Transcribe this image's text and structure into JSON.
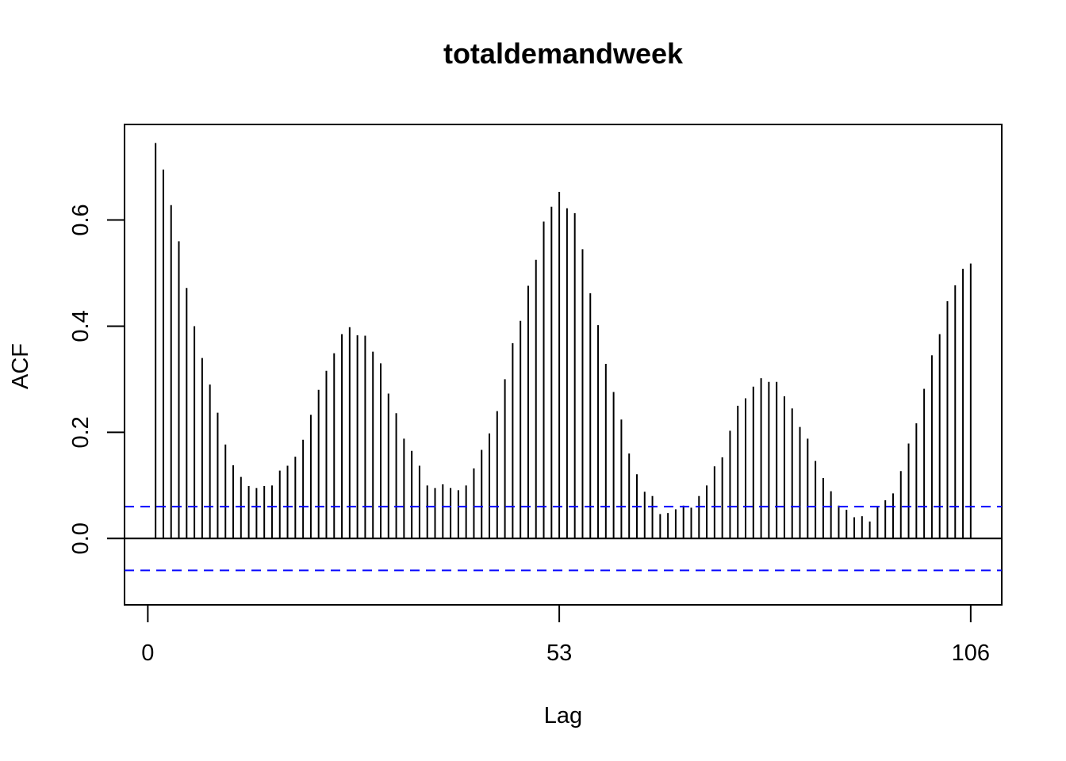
{
  "chart_data": {
    "type": "bar",
    "title": "totaldemandweek",
    "xlabel": "Lag",
    "ylabel": "ACF",
    "xlim": [
      -3,
      110
    ],
    "ylim": [
      -0.125,
      0.78
    ],
    "x_ticks": [
      0,
      53,
      106
    ],
    "x_tick_labels": [
      "0",
      "53",
      "106"
    ],
    "y_ticks": [
      0.0,
      0.2,
      0.4,
      0.6
    ],
    "y_tick_labels": [
      "0.0",
      "0.2",
      "0.4",
      "0.6"
    ],
    "grid": false,
    "legend": null,
    "confidence_band": 0.06,
    "colors": {
      "bars": "#000000",
      "confidence": "#0000ff",
      "zero_line": "#000000"
    },
    "lags": [
      1,
      2,
      3,
      4,
      5,
      6,
      7,
      8,
      9,
      10,
      11,
      12,
      13,
      14,
      15,
      16,
      17,
      18,
      19,
      20,
      21,
      22,
      23,
      24,
      25,
      26,
      27,
      28,
      29,
      30,
      31,
      32,
      33,
      34,
      35,
      36,
      37,
      38,
      39,
      40,
      41,
      42,
      43,
      44,
      45,
      46,
      47,
      48,
      49,
      50,
      51,
      52,
      53,
      54,
      55,
      56,
      57,
      58,
      59,
      60,
      61,
      62,
      63,
      64,
      65,
      66,
      67,
      68,
      69,
      70,
      71,
      72,
      73,
      74,
      75,
      76,
      77,
      78,
      79,
      80,
      81,
      82,
      83,
      84,
      85,
      86,
      87,
      88,
      89,
      90,
      91,
      92,
      93,
      94,
      95,
      96,
      97,
      98,
      99,
      100,
      101,
      102,
      103,
      104,
      105,
      106
    ],
    "acf": [
      0.745,
      0.695,
      0.628,
      0.56,
      0.472,
      0.4,
      0.34,
      0.29,
      0.237,
      0.177,
      0.138,
      0.116,
      0.099,
      0.095,
      0.099,
      0.1,
      0.128,
      0.137,
      0.154,
      0.186,
      0.233,
      0.28,
      0.316,
      0.349,
      0.385,
      0.398,
      0.383,
      0.382,
      0.352,
      0.33,
      0.273,
      0.236,
      0.188,
      0.165,
      0.137,
      0.1,
      0.095,
      0.102,
      0.095,
      0.091,
      0.1,
      0.132,
      0.167,
      0.198,
      0.24,
      0.3,
      0.368,
      0.41,
      0.476,
      0.525,
      0.597,
      0.625,
      0.653,
      0.622,
      0.613,
      0.545,
      0.462,
      0.402,
      0.329,
      0.276,
      0.224,
      0.16,
      0.121,
      0.088,
      0.08,
      0.046,
      0.048,
      0.055,
      0.062,
      0.058,
      0.08,
      0.1,
      0.136,
      0.153,
      0.203,
      0.25,
      0.264,
      0.286,
      0.302,
      0.295,
      0.295,
      0.268,
      0.245,
      0.21,
      0.188,
      0.146,
      0.114,
      0.089,
      0.062,
      0.054,
      0.04,
      0.042,
      0.032,
      0.06,
      0.072,
      0.085,
      0.127,
      0.179,
      0.217,
      0.282,
      0.345,
      0.385,
      0.447,
      0.477,
      0.508,
      0.518
    ]
  }
}
